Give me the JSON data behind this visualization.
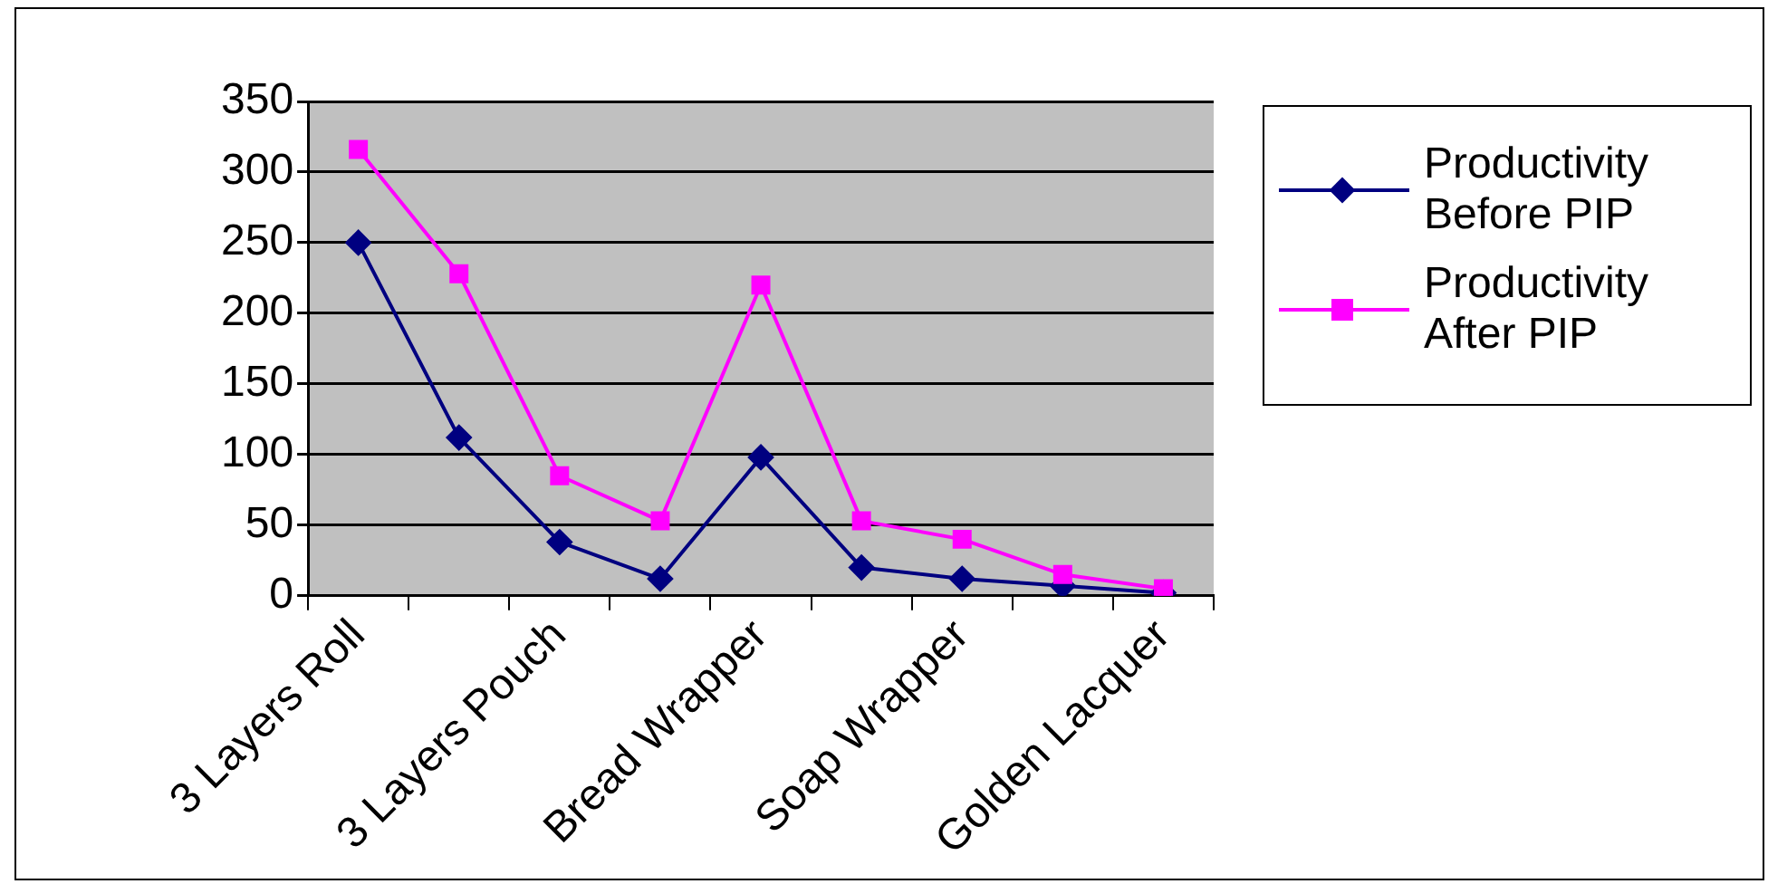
{
  "chart_data": {
    "type": "line",
    "categories": [
      "3 Layers Roll",
      null,
      "3 Layers Pouch",
      null,
      "Bread Wrapper",
      null,
      "Soap Wrapper",
      null,
      "Golden Lacquer"
    ],
    "series": [
      {
        "name": "Productivity Before PIP",
        "color": "#000080",
        "marker": "diamond",
        "values": [
          250,
          112,
          38,
          12,
          98,
          20,
          12,
          7,
          2
        ]
      },
      {
        "name": "Productivity After PIP",
        "color": "#ff00ff",
        "marker": "square",
        "values": [
          316,
          228,
          85,
          53,
          220,
          53,
          40,
          15,
          5
        ]
      }
    ],
    "ylim": [
      0,
      350
    ],
    "yticks": [
      0,
      50,
      100,
      150,
      200,
      250,
      300,
      350
    ],
    "grid": "y",
    "legend": "right",
    "line_style": "solid"
  }
}
